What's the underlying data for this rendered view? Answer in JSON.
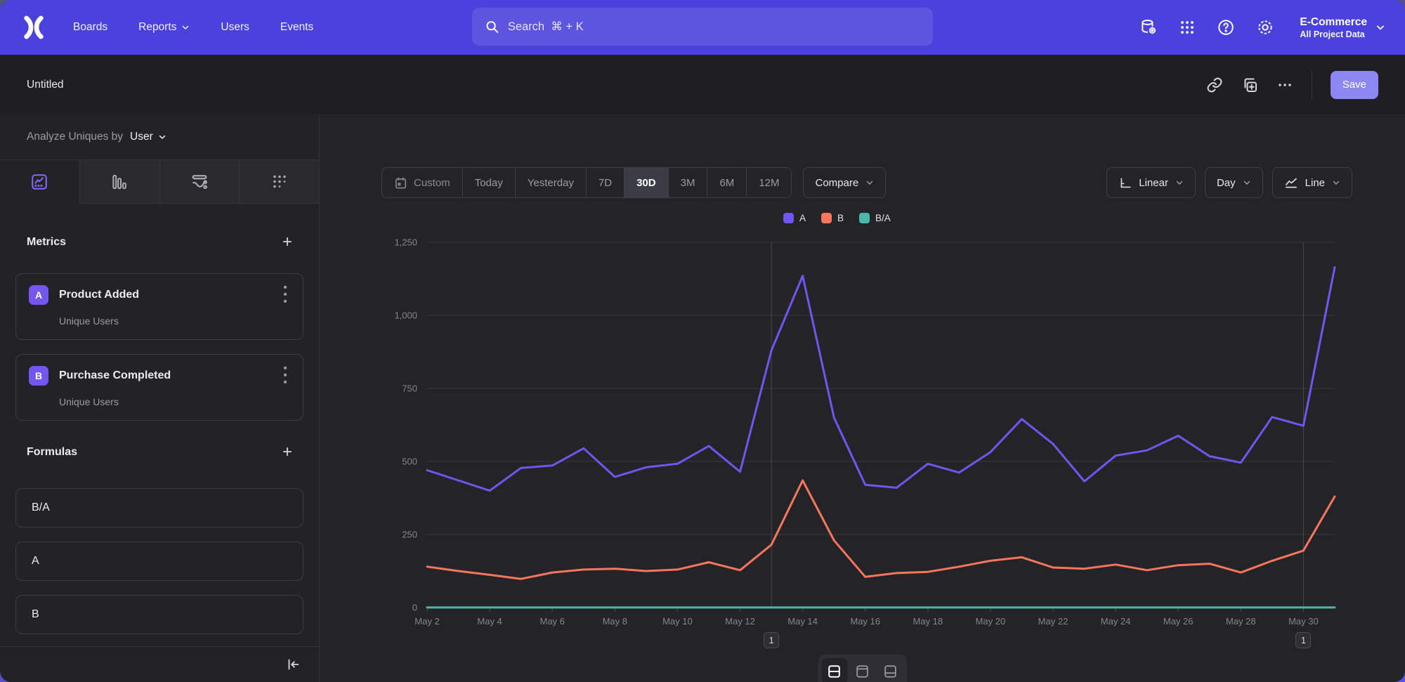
{
  "nav": {
    "items": [
      {
        "label": "Boards",
        "has_dropdown": false
      },
      {
        "label": "Reports",
        "has_dropdown": true
      },
      {
        "label": "Users",
        "has_dropdown": false
      },
      {
        "label": "Events",
        "has_dropdown": false
      }
    ],
    "search": {
      "placeholder": "Search  ⌘ + K"
    },
    "project": {
      "name": "E-Commerce",
      "scope": "All Project Data"
    }
  },
  "header": {
    "title": "Untitled",
    "save_label": "Save"
  },
  "sidebar": {
    "analyze_label": "Analyze Uniques by",
    "analyze_value": "User",
    "metrics_title": "Metrics",
    "metrics": [
      {
        "badge": "A",
        "name": "Product Added",
        "subtitle": "Unique Users"
      },
      {
        "badge": "B",
        "name": "Purchase Completed",
        "subtitle": "Unique Users"
      }
    ],
    "formulas_title": "Formulas",
    "formulas": [
      "B/A",
      "A",
      "B"
    ]
  },
  "controls": {
    "ranges": [
      "Custom",
      "Today",
      "Yesterday",
      "7D",
      "30D",
      "3M",
      "6M",
      "12M"
    ],
    "active_range": "30D",
    "compare_label": "Compare",
    "scale_label": "Linear",
    "interval_label": "Day",
    "chart_type_label": "Line"
  },
  "chart_data": {
    "type": "line",
    "x": [
      "May 2",
      "May 3",
      "May 4",
      "May 5",
      "May 6",
      "May 7",
      "May 8",
      "May 9",
      "May 10",
      "May 11",
      "May 12",
      "May 13",
      "May 14",
      "May 15",
      "May 16",
      "May 17",
      "May 18",
      "May 19",
      "May 20",
      "May 21",
      "May 22",
      "May 23",
      "May 24",
      "May 25",
      "May 26",
      "May 27",
      "May 28",
      "May 29",
      "May 30",
      "May 31"
    ],
    "xtick_every": 2,
    "ylim": [
      0,
      1250
    ],
    "yticks": [
      0,
      250,
      500,
      750,
      1000,
      1250
    ],
    "ytick_labels": [
      "0",
      "250",
      "500",
      "750",
      "1,000",
      "1,250"
    ],
    "grid": "horizontal",
    "legend_position": "top-center",
    "series": [
      {
        "name": "A",
        "color": "#7155ee",
        "pattern": "solid",
        "values": [
          470,
          435,
          400,
          478,
          486,
          545,
          447,
          480,
          492,
          553,
          465,
          880,
          1135,
          650,
          420,
          410,
          492,
          462,
          532,
          645,
          560,
          432,
          520,
          538,
          588,
          518,
          496,
          652,
          622,
          1165
        ]
      },
      {
        "name": "B",
        "color": "#f8765d",
        "pattern": "solid",
        "values": [
          140,
          125,
          112,
          98,
          120,
          130,
          133,
          125,
          130,
          155,
          128,
          215,
          435,
          230,
          105,
          118,
          122,
          140,
          160,
          172,
          137,
          133,
          147,
          128,
          145,
          150,
          120,
          160,
          195,
          380
        ]
      },
      {
        "name": "B/A",
        "color": "#4bb7a6",
        "pattern": "dots",
        "values": [
          0.3,
          0.3,
          0.3,
          0.3,
          0.3,
          0.3,
          0.3,
          0.3,
          0.3,
          0.3,
          0.3,
          0.3,
          0.3,
          0.3,
          0.3,
          0.3,
          0.3,
          0.3,
          0.3,
          0.3,
          0.3,
          0.3,
          0.3,
          0.3,
          0.3,
          0.3,
          0.3,
          0.3,
          0.3,
          0.3
        ]
      }
    ],
    "annotations": [
      {
        "label": "1",
        "x": "May 13"
      },
      {
        "label": "1",
        "x": "May 30"
      }
    ]
  }
}
